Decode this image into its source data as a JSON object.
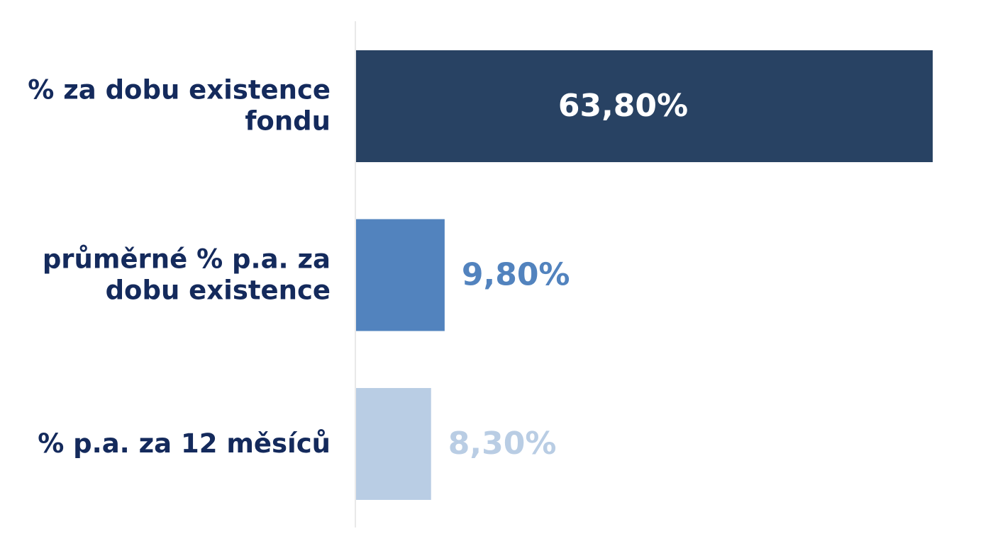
{
  "chart_data": {
    "type": "bar",
    "orientation": "horizontal",
    "categories": [
      "% za dobu existence fondu",
      "průměrné % p.a. za dobu existence",
      "% p.a. za 12 měsíců"
    ],
    "values": [
      63.8,
      9.8,
      8.3
    ],
    "value_labels": [
      "63,80%",
      "9,80%",
      "8,30%"
    ],
    "colors": [
      "#284263",
      "#5283be",
      "#b9cde4"
    ]
  }
}
